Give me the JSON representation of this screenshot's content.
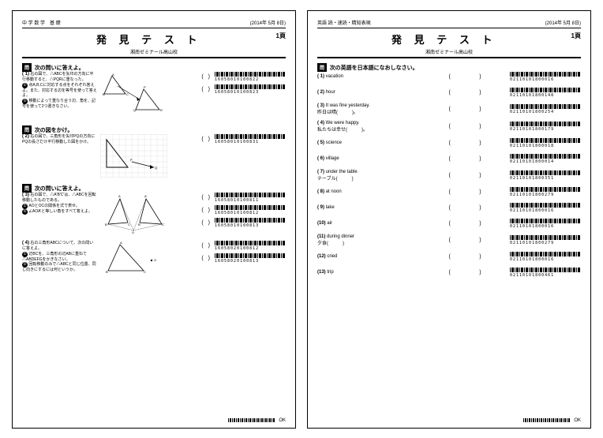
{
  "leftPage": {
    "header_left": "中 学 数 学　基 礎",
    "header_right": "(2014年 5月 8日)",
    "title": "発 見 テ ス ト",
    "page_num": "1頁",
    "subtitle": "湘南ゼミナール高山校",
    "sections": [
      {
        "label": "問",
        "title": "次の問いに答えよ。",
        "questions": [
          {
            "num": "( 1)",
            "lines": "右の図で、△ABCを矢印の方向に平行移動すると、△PQRに重なった。",
            "sub": [
              "①",
              "②"
            ],
            "subtext1": "点A,B,Cに対応する点をそれぞれ答えよ。また、対応する辺を等号を使って答えよ。",
            "subtext2": "移動によって重なり合う辺、角を、記号を使って2つ書きなさい。",
            "answers": [
              "16058010100822",
              "16058010100823"
            ],
            "figure": "triangles1"
          }
        ]
      },
      {
        "label": "問",
        "title": "次の図をかけ。",
        "questions": [
          {
            "num": "( 2)",
            "lines": "右の図で、三角形を矢印PQの方向にPQの長さだけ平行移動した図をかけ。",
            "answers": [
              "16058010100831"
            ],
            "figure": "grid"
          }
        ]
      },
      {
        "label": "問",
        "title": "次の問いに答えよ。",
        "questions": [
          {
            "num": "( 3)",
            "lines": "右の図で、△A'B'C'は、△ABCを回転移動したものである。",
            "sub": [
              "①",
              "②",
              "③"
            ],
            "subtext1": "AOとOCの関係を式で表せ。",
            "subtext2": "∠AOA'と等しい角をすべて答えよ。",
            "answers": [
              "16058010100811",
              "16058010100812",
              "16058010100813"
            ],
            "figure": "fan"
          },
          {
            "num": "( 4)",
            "lines": "右の三角形ABCについて、次の問いに答えよ。",
            "sub": [
              "①",
              "②"
            ],
            "subtext1": "辺BCを、三角形の辺ABに重ねて△ABDEFGをかきなさい。",
            "subtext2": "回転移動のみで△ABCと同じ位置、同じ向きにするには何というか。",
            "answers": [
              "16058020100812",
              "16058020100813"
            ],
            "figure": "tri3"
          }
        ]
      }
    ],
    "footer_ok": "OK"
  },
  "rightPage": {
    "header_left": "英語 読・速読・精知表現",
    "header_right": "(2014年 5月 8日)",
    "title": "発 見 テ ス ト",
    "page_num": "1頁",
    "subtitle": "湘南ゼミナール高山校",
    "section_label": "問",
    "section_title": "次の英語を日本語になおしなさい。",
    "items": [
      {
        "num": "( 1)",
        "text": "vacation",
        "code": "02110101800016"
      },
      {
        "num": "( 2)",
        "text": "hour",
        "code": "02110101800148"
      },
      {
        "num": "( 3)",
        "text": "It was fine yesterday.\n昨日は晴(　　　)。",
        "code": "02110101800254"
      },
      {
        "num": "( 4)",
        "text": "We were happy.\n私たちは幸せ(　　　)。",
        "code": "02110101800179"
      },
      {
        "num": "( 5)",
        "text": "science",
        "code": "02110101800018"
      },
      {
        "num": "( 6)",
        "text": "village",
        "code": "02110101800014"
      },
      {
        "num": "( 7)",
        "text": "under the table\nテーブル(　　　)",
        "code": "02110101800351"
      },
      {
        "num": "( 8)",
        "text": "at noon",
        "code": "02110101800279"
      },
      {
        "num": "( 9)",
        "text": "lake",
        "code": "02110101800016"
      },
      {
        "num": "(10)",
        "text": "air",
        "code": "02110101800016"
      },
      {
        "num": "(11)",
        "text": "during dinner\n夕食(　　　)",
        "code": "02110101800279"
      },
      {
        "num": "(12)",
        "text": "cried",
        "code": "02110101800016"
      },
      {
        "num": "(13)",
        "text": "trip",
        "code": "02110101800461"
      }
    ],
    "footer_ok": "OK"
  }
}
